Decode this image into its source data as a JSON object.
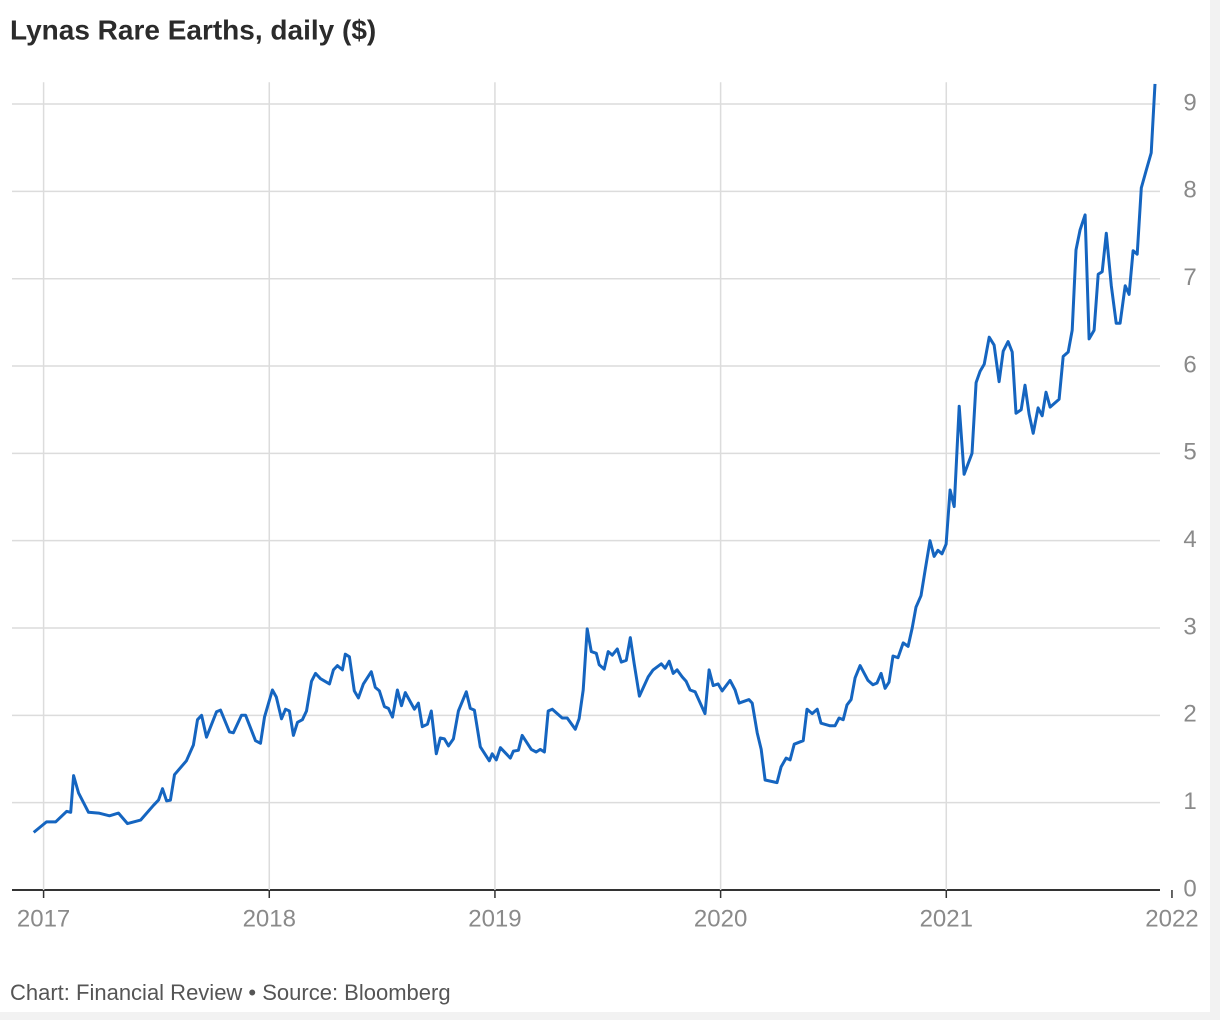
{
  "chart_data": {
    "type": "line",
    "title": "Lynas Rare Earths, daily ($)",
    "source": "Chart: Financial Review • Source: Bloomberg",
    "xlim": [
      2016.86,
      2021.947
    ],
    "xticks": [
      2017,
      2018,
      2019,
      2020,
      2021,
      2022
    ],
    "ylim": [
      0,
      9.25
    ],
    "yticks": [
      0,
      1,
      2,
      3,
      4,
      5,
      6,
      7,
      8,
      9
    ],
    "grid": true,
    "series": [
      {
        "color": "#1565c0",
        "x": [
          2016.956,
          2017.013,
          2017.053,
          2017.102,
          2017.12,
          2017.133,
          2017.155,
          2017.199,
          2017.244,
          2017.292,
          2017.332,
          2017.372,
          2017.43,
          2017.487,
          2017.509,
          2017.527,
          2017.545,
          2017.562,
          2017.58,
          2017.633,
          2017.664,
          2017.682,
          2017.7,
          2017.722,
          2017.766,
          2017.784,
          2017.824,
          2017.841,
          2017.877,
          2017.895,
          2017.939,
          2017.961,
          2017.979,
          2018.014,
          2018.031,
          2018.054,
          2018.072,
          2018.089,
          2018.107,
          2018.125,
          2018.147,
          2018.165,
          2018.187,
          2018.205,
          2018.227,
          2018.267,
          2018.284,
          2018.302,
          2018.324,
          2018.337,
          2018.355,
          2018.377,
          2018.395,
          2018.417,
          2018.452,
          2018.47,
          2018.488,
          2018.51,
          2018.528,
          2018.546,
          2018.568,
          2018.586,
          2018.603,
          2018.643,
          2018.661,
          2018.678,
          2018.701,
          2018.718,
          2018.74,
          2018.758,
          2018.776,
          2018.794,
          2018.816,
          2018.838,
          2018.873,
          2018.891,
          2018.909,
          2018.935,
          2018.975,
          2018.988,
          2019.006,
          2019.024,
          2019.068,
          2019.082,
          2019.104,
          2019.121,
          2019.161,
          2019.183,
          2019.201,
          2019.219,
          2019.236,
          2019.254,
          2019.298,
          2019.32,
          2019.356,
          2019.373,
          2019.391,
          2019.409,
          2019.427,
          2019.449,
          2019.462,
          2019.484,
          2019.502,
          2019.52,
          2019.542,
          2019.56,
          2019.582,
          2019.6,
          2019.617,
          2019.64,
          2019.679,
          2019.701,
          2019.737,
          2019.754,
          2019.772,
          2019.79,
          2019.807,
          2019.83,
          2019.847,
          2019.865,
          2019.887,
          2019.931,
          2019.949,
          2019.967,
          2019.989,
          2020.007,
          2020.042,
          2020.064,
          2020.082,
          2020.126,
          2020.14,
          2020.162,
          2020.18,
          2020.197,
          2020.25,
          2020.268,
          2020.29,
          2020.308,
          2020.326,
          2020.366,
          2020.383,
          2020.406,
          2020.428,
          2020.445,
          2020.485,
          2020.507,
          2020.525,
          2020.543,
          2020.56,
          2020.578,
          2020.596,
          2020.618,
          2020.653,
          2020.675,
          2020.693,
          2020.711,
          2020.729,
          2020.746,
          2020.764,
          2020.786,
          2020.809,
          2020.831,
          2020.849,
          2020.866,
          2020.888,
          2020.906,
          2020.928,
          2020.946,
          2020.963,
          2020.981,
          2020.999,
          2021.017,
          2021.035,
          2021.057,
          2021.079,
          2021.114,
          2021.132,
          2021.15,
          2021.168,
          2021.19,
          2021.212,
          2021.234,
          2021.252,
          2021.274,
          2021.292,
          2021.309,
          2021.332,
          2021.349,
          2021.367,
          2021.385,
          2021.407,
          2021.425,
          2021.442,
          2021.46,
          2021.5,
          2021.518,
          2021.54,
          2021.558,
          2021.575,
          2021.593,
          2021.615,
          2021.633,
          2021.655,
          2021.673,
          2021.691,
          2021.709,
          2021.731,
          2021.753,
          2021.77,
          2021.793,
          2021.81,
          2021.828,
          2021.846,
          2021.864,
          2021.886,
          2021.908,
          2021.925
        ],
        "values": [
          0.66,
          0.78,
          0.78,
          0.9,
          0.89,
          1.31,
          1.11,
          0.89,
          0.88,
          0.85,
          0.88,
          0.76,
          0.8,
          0.97,
          1.03,
          1.16,
          1.02,
          1.03,
          1.32,
          1.48,
          1.66,
          1.95,
          2.0,
          1.75,
          2.04,
          2.06,
          1.81,
          1.8,
          2.0,
          2.0,
          1.71,
          1.68,
          1.98,
          2.29,
          2.21,
          1.96,
          2.07,
          2.05,
          1.77,
          1.92,
          1.95,
          2.05,
          2.39,
          2.48,
          2.42,
          2.36,
          2.52,
          2.57,
          2.52,
          2.7,
          2.67,
          2.28,
          2.2,
          2.36,
          2.5,
          2.32,
          2.28,
          2.1,
          2.08,
          1.98,
          2.29,
          2.11,
          2.26,
          2.07,
          2.14,
          1.87,
          1.9,
          2.05,
          1.56,
          1.74,
          1.73,
          1.65,
          1.73,
          2.05,
          2.27,
          2.08,
          2.06,
          1.64,
          1.48,
          1.56,
          1.49,
          1.63,
          1.51,
          1.59,
          1.6,
          1.77,
          1.61,
          1.58,
          1.61,
          1.58,
          2.05,
          2.07,
          1.97,
          1.97,
          1.84,
          1.96,
          2.29,
          2.99,
          2.73,
          2.71,
          2.58,
          2.53,
          2.73,
          2.69,
          2.76,
          2.61,
          2.63,
          2.89,
          2.59,
          2.22,
          2.44,
          2.52,
          2.59,
          2.54,
          2.62,
          2.48,
          2.52,
          2.44,
          2.39,
          2.29,
          2.27,
          2.02,
          2.52,
          2.34,
          2.36,
          2.28,
          2.4,
          2.29,
          2.14,
          2.18,
          2.14,
          1.8,
          1.61,
          1.26,
          1.23,
          1.41,
          1.51,
          1.49,
          1.67,
          1.71,
          2.07,
          2.02,
          2.07,
          1.91,
          1.88,
          1.88,
          1.97,
          1.95,
          2.12,
          2.18,
          2.43,
          2.57,
          2.4,
          2.35,
          2.37,
          2.48,
          2.31,
          2.38,
          2.68,
          2.66,
          2.83,
          2.79,
          3.0,
          3.24,
          3.37,
          3.66,
          4.0,
          3.82,
          3.89,
          3.85,
          3.96,
          4.58,
          4.39,
          5.54,
          4.76,
          5.0,
          5.81,
          5.94,
          6.02,
          6.33,
          6.24,
          5.82,
          6.17,
          6.28,
          6.16,
          5.46,
          5.5,
          5.78,
          5.45,
          5.23,
          5.52,
          5.43,
          5.7,
          5.53,
          5.62,
          6.11,
          6.16,
          6.41,
          7.33,
          7.56,
          7.73,
          6.31,
          6.41,
          7.05,
          7.08,
          7.52,
          6.92,
          6.49,
          6.49,
          6.92,
          6.82,
          7.32,
          7.28,
          8.04,
          8.24,
          8.44,
          9.23
        ]
      }
    ]
  }
}
